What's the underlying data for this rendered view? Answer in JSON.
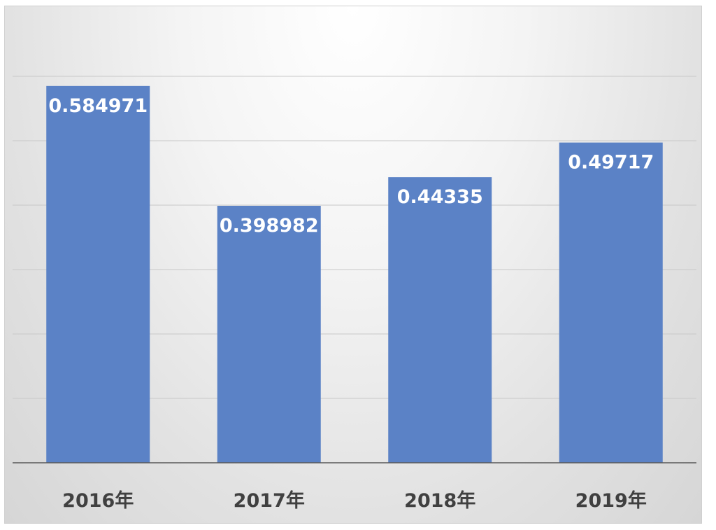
{
  "chart_data": {
    "type": "bar",
    "categories": [
      "2016年",
      "2017年",
      "2018年",
      "2019年"
    ],
    "values": [
      0.584971,
      0.398982,
      0.44335,
      0.49717
    ],
    "value_labels": [
      "0.584971",
      "0.398982",
      "0.44335",
      "0.49717"
    ],
    "title": "",
    "xlabel": "",
    "ylabel": "",
    "ylim": [
      0,
      0.6
    ],
    "grid": true,
    "legend": "none",
    "bar_color": "#5b82c6",
    "label_color": "#ffffff",
    "category_label_color": "#404040",
    "gridline_color": "#c8c8c8",
    "axis_color": "#595959"
  }
}
